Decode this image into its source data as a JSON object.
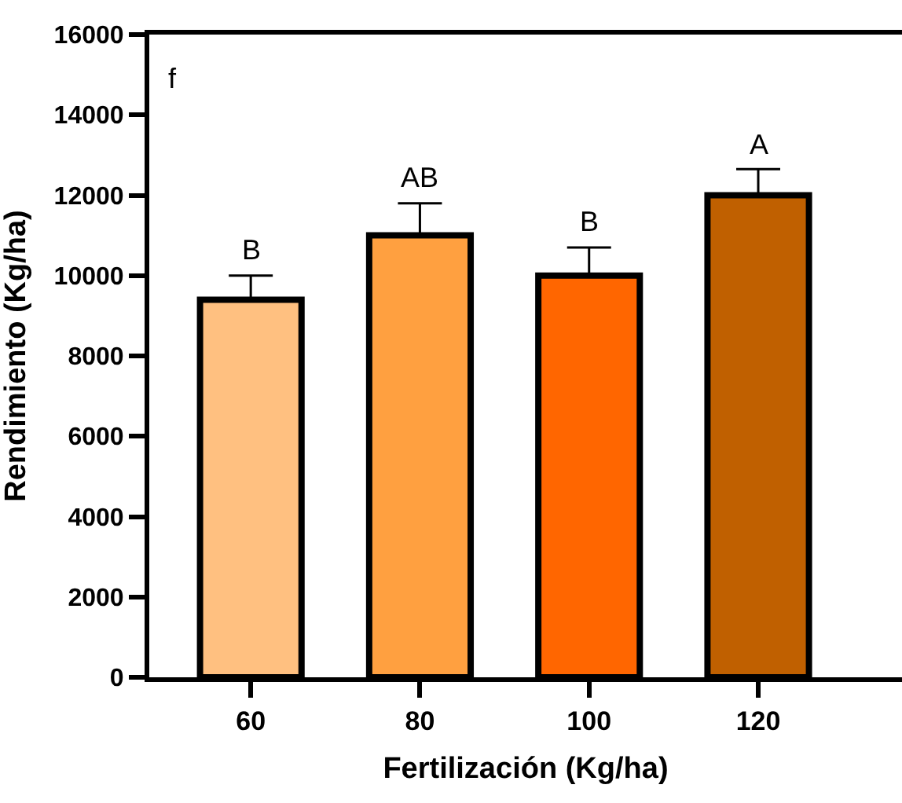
{
  "chart_data": {
    "type": "bar",
    "xlabel": "Fertilización (Kg/ha)",
    "ylabel": "Rendimiento (Kg/ha)",
    "categories": [
      "60",
      "80",
      "100",
      "120"
    ],
    "values": [
      9400,
      11000,
      10000,
      12000
    ],
    "errors": [
      600,
      800,
      700,
      650
    ],
    "colors": [
      "#ffc080",
      "#ffa040",
      "#ff6600",
      "#c06000"
    ],
    "ylim": [
      0,
      16000
    ],
    "yticks": [
      0,
      2000,
      4000,
      6000,
      8000,
      10000,
      12000,
      14000,
      16000
    ],
    "annotations": [
      {
        "text": "B",
        "x": "60",
        "y": 10000
      },
      {
        "text": "AB",
        "x": "80",
        "y": 11800
      },
      {
        "text": "B",
        "x": "100",
        "y": 10700
      },
      {
        "text": "A",
        "x": "120",
        "y": 12650
      },
      "f"
    ]
  }
}
